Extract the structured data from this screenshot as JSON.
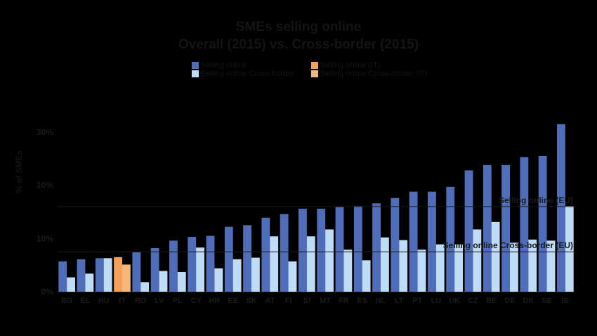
{
  "title_line1": "SMEs selling online",
  "title_line2": "Overall (2015) vs. Cross-border (2015)",
  "ylabel": "% of SMEs",
  "legend": [
    {
      "label": "Selling online",
      "color": "#4f6db8"
    },
    {
      "label": "Selling online (IT)",
      "color": "#f2a05a"
    },
    {
      "label": "Selling online Cross-border",
      "color": "#bfdcf7"
    },
    {
      "label": "Selling online Cross-border (IT)",
      "color": "#f7b77a"
    }
  ],
  "ref_lines": [
    {
      "label": "Selling online (EU)",
      "value": 16
    },
    {
      "label": "Selling online Cross-border (EU)",
      "value": 7.5
    }
  ],
  "chart_data": {
    "type": "bar",
    "categories": [
      "BG",
      "EL",
      "HU",
      "IT",
      "RO",
      "LV",
      "PL",
      "CY",
      "HR",
      "EE",
      "SK",
      "AT",
      "FI",
      "SI",
      "MT",
      "FR",
      "ES",
      "NL",
      "LT",
      "PT",
      "LU",
      "UK",
      "CZ",
      "BE",
      "DE",
      "DK",
      "SE",
      "IE"
    ],
    "series": [
      {
        "name": "Selling online",
        "values": [
          5.7,
          6.1,
          6.3,
          6.5,
          7.4,
          8.2,
          9.6,
          10.3,
          10.5,
          12.2,
          12.5,
          13.9,
          14.6,
          15.6,
          15.6,
          15.9,
          16.1,
          16.6,
          17.6,
          18.8,
          18.8,
          19.7,
          22.8,
          23.8,
          23.8,
          25.3,
          25.5,
          31.5
        ]
      },
      {
        "name": "Selling online Cross-border",
        "values": [
          2.7,
          3.4,
          6.3,
          5.1,
          1.8,
          3.9,
          3.7,
          8.3,
          4.4,
          6.1,
          6.4,
          10.4,
          5.7,
          10.4,
          11.7,
          7.9,
          5.9,
          10.2,
          9.7,
          7.9,
          8.9,
          8.9,
          11.7,
          13.1,
          9.2,
          9.8,
          9.6,
          16.1
        ]
      }
    ],
    "highlight_category": "IT",
    "ylim": [
      0,
      35
    ],
    "yticks": [
      "0%",
      "10%",
      "20%",
      "30%"
    ],
    "colors": {
      "overall": "#4f6db8",
      "cross": "#bfdcf7",
      "it_overall": "#f2a05a",
      "it_cross": "#f7b77a"
    }
  }
}
